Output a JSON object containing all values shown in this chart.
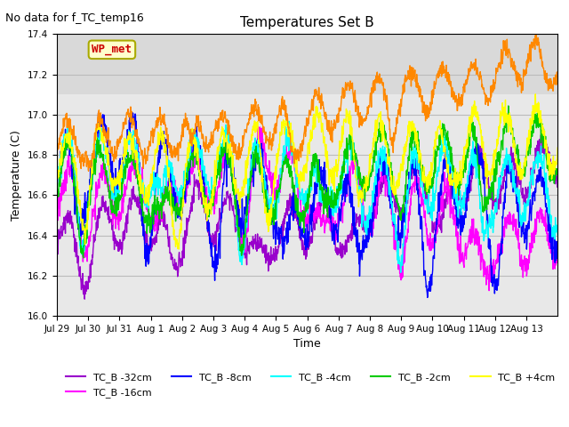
{
  "title": "Temperatures Set B",
  "suptitle": "No data for f_TC_temp16",
  "xlabel": "Time",
  "ylabel": "Temperature (C)",
  "ylim": [
    16.0,
    17.4
  ],
  "yticks": [
    16.0,
    16.2,
    16.4,
    16.6,
    16.8,
    17.0,
    17.2,
    17.4
  ],
  "xtick_labels": [
    "Jul 29",
    "Jul 30",
    "Jul 31",
    "Aug 1",
    "Aug 2",
    "Aug 3",
    "Aug 4",
    "Aug 5",
    "Aug 6",
    "Aug 7",
    "Aug 8",
    "Aug 9",
    "Aug 10",
    "Aug 11",
    "Aug 12",
    "Aug 13"
  ],
  "series_colors": {
    "TC_B -32cm": "#9900cc",
    "TC_B -16cm": "#ff00ff",
    "TC_B -8cm": "#0000ff",
    "TC_B -4cm": "#00ffff",
    "TC_B -2cm": "#00cc00",
    "TC_B +4cm": "#ffff00",
    "TC_B +8cm": "#ff8800"
  },
  "legend_wp_met_color": "#cc0000",
  "legend_wp_met_bg": "#ffffcc",
  "shaded_region": [
    17.1,
    17.4
  ],
  "background_color": "#e8e8e8",
  "plot_bg_color": "#ffffff"
}
